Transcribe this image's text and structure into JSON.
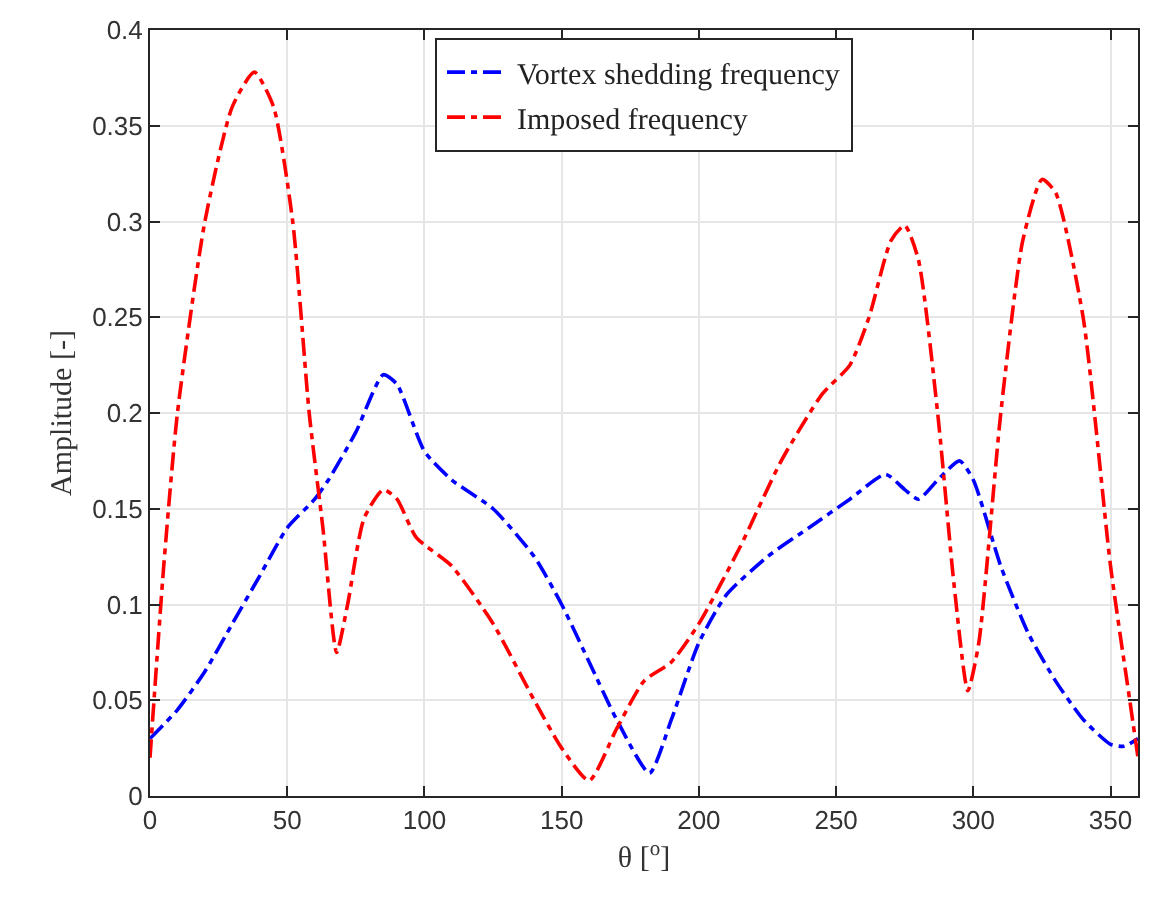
{
  "chart_data": {
    "type": "line",
    "xlabel": "θ [$^{o}$]",
    "ylabel": "Amplitude [-]",
    "xlim": [
      0,
      360
    ],
    "xticks": [
      0,
      50,
      100,
      150,
      200,
      250,
      300,
      350
    ],
    "ylim": [
      0,
      0.4
    ],
    "yticks": [
      0,
      0.05,
      0.1,
      0.15,
      0.2,
      0.25,
      0.3,
      0.35,
      0.4
    ],
    "grid": true,
    "legend": "top",
    "line_style": "dashdot",
    "series": [
      {
        "name": "Vortex shedding frequency",
        "color": "#0000ff",
        "x": [
          0,
          10,
          20,
          30,
          40,
          50,
          60,
          65,
          75,
          85,
          90,
          100,
          110,
          125,
          140,
          150,
          160,
          170,
          182,
          190,
          200,
          210,
          225,
          240,
          255,
          268,
          275,
          280,
          287,
          295,
          300,
          310,
          320,
          330,
          340,
          350,
          355,
          360
        ],
        "values": [
          0.03,
          0.045,
          0.065,
          0.09,
          0.115,
          0.14,
          0.155,
          0.165,
          0.19,
          0.22,
          0.215,
          0.18,
          0.165,
          0.15,
          0.125,
          0.1,
          0.07,
          0.04,
          0.012,
          0.04,
          0.08,
          0.105,
          0.125,
          0.14,
          0.155,
          0.168,
          0.16,
          0.155,
          0.165,
          0.175,
          0.165,
          0.12,
          0.085,
          0.06,
          0.04,
          0.027,
          0.026,
          0.03
        ]
      },
      {
        "name": "Imposed frequency",
        "color": "#ff0000",
        "x": [
          0,
          5,
          10,
          20,
          30,
          38,
          45,
          52,
          58,
          63,
          68,
          72,
          78,
          85,
          90,
          97,
          110,
          125,
          140,
          150,
          160,
          170,
          180,
          190,
          200,
          215,
          230,
          245,
          255,
          262,
          270,
          275,
          280,
          287,
          293,
          298,
          302,
          310,
          318,
          325,
          330,
          340,
          350,
          357,
          360
        ],
        "values": [
          0.02,
          0.12,
          0.2,
          0.3,
          0.36,
          0.378,
          0.36,
          0.3,
          0.2,
          0.14,
          0.075,
          0.1,
          0.145,
          0.16,
          0.155,
          0.135,
          0.12,
          0.09,
          0.05,
          0.025,
          0.008,
          0.035,
          0.06,
          0.07,
          0.09,
          0.13,
          0.175,
          0.21,
          0.225,
          0.25,
          0.29,
          0.298,
          0.28,
          0.2,
          0.11,
          0.055,
          0.08,
          0.2,
          0.29,
          0.322,
          0.315,
          0.25,
          0.12,
          0.05,
          0.02
        ]
      }
    ]
  }
}
